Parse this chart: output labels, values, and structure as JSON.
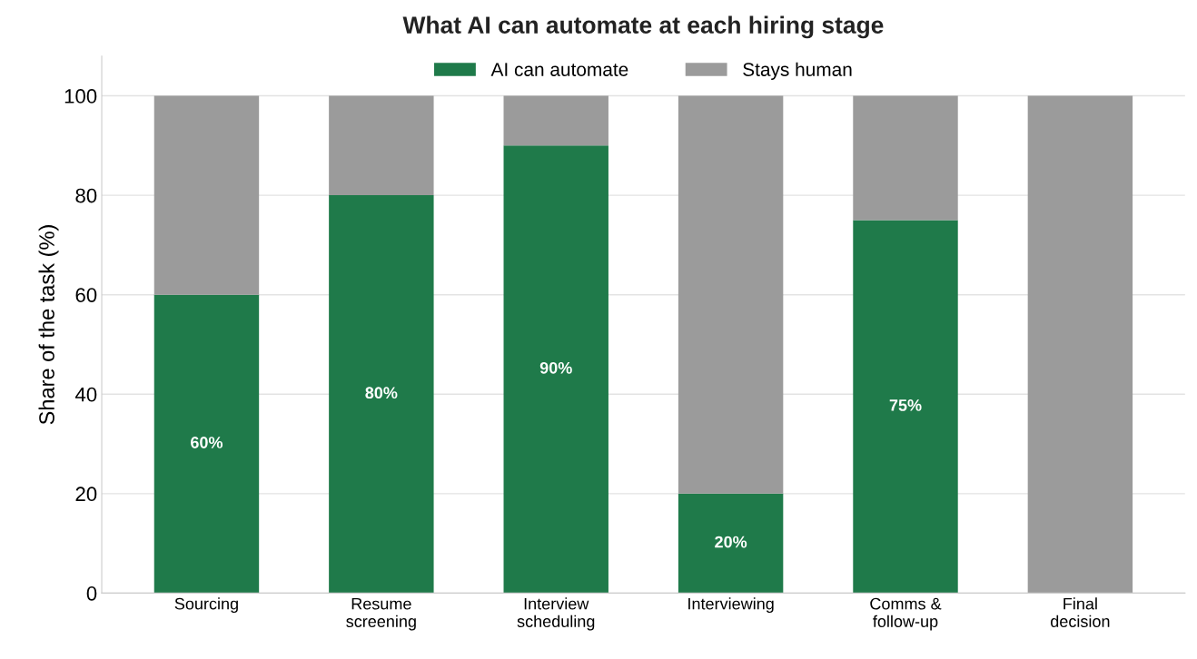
{
  "chart_data": {
    "type": "bar",
    "title": "What AI can automate at each hiring stage",
    "ylabel": "Share of the task (%)",
    "categories": [
      "Sourcing",
      "Resume\nscreening",
      "Interview\nscheduling",
      "Interviewing",
      "Comms &\nfollow-up",
      "Final\ndecision"
    ],
    "stacked": true,
    "series": [
      {
        "name": "AI can automate",
        "color": "#1f7a4a",
        "values": [
          60,
          80,
          90,
          20,
          75,
          0
        ],
        "value_labels": [
          "60%",
          "80%",
          "90%",
          "20%",
          "75%",
          null
        ]
      },
      {
        "name": "Stays human",
        "color": "#9b9b9b",
        "values": [
          40,
          20,
          10,
          80,
          25,
          100
        ]
      }
    ],
    "ylim": [
      0,
      108
    ],
    "yticks": [
      0,
      20,
      40,
      60,
      80,
      100
    ],
    "grid": "y",
    "legend": "top"
  }
}
